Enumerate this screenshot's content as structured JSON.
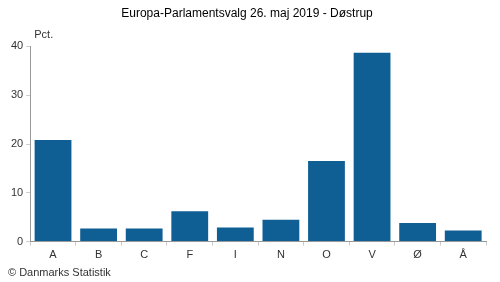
{
  "chart_data": {
    "type": "bar",
    "title": "Europa-Parlamentsvalg 26. maj 2019 - Døstrup",
    "y_label": "Pct.",
    "source": "© Danmarks Statistik",
    "categories": [
      "A",
      "B",
      "C",
      "F",
      "I",
      "N",
      "O",
      "V",
      "Ø",
      "Å"
    ],
    "values": [
      20.8,
      2.7,
      2.7,
      6.2,
      2.9,
      4.5,
      16.5,
      38.7,
      3.8,
      2.3
    ],
    "color": "#0f5f95",
    "ylim": [
      0,
      40
    ],
    "yticks": [
      0,
      10,
      20,
      30,
      40
    ],
    "grid": false
  }
}
